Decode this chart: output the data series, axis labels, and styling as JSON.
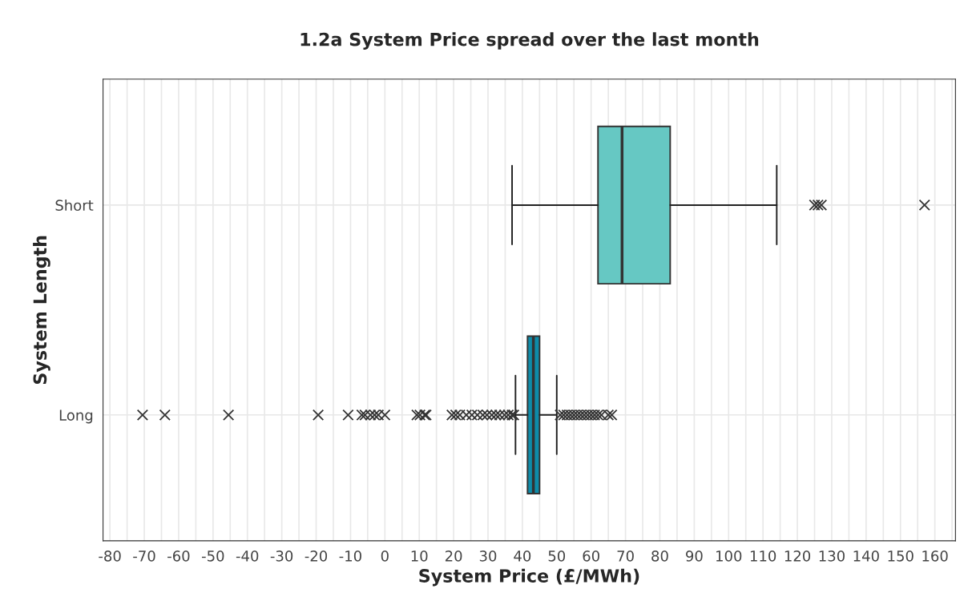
{
  "chart_data": {
    "type": "box",
    "title": "1.2a System Price spread over the last month",
    "xlabel": "System Price (£/MWh)",
    "ylabel": "System Length",
    "orientation": "horizontal",
    "categories": [
      "Short",
      "Long"
    ],
    "colors": [
      "#66c8c3",
      "#0e8ba8"
    ],
    "boxes": [
      {
        "low": 37,
        "q1": 62,
        "median": 69,
        "q3": 83,
        "high": 114,
        "outliers": [
          125,
          126,
          127,
          157
        ]
      },
      {
        "low": 38,
        "q1": 41.5,
        "median": 43.2,
        "q3": 45,
        "high": 50,
        "outliers": [
          -70.5,
          -64,
          -45.5,
          -19.4,
          -10.7,
          -6.7,
          -5.8,
          -4.2,
          -3,
          -1.9,
          0,
          9.3,
          10.2,
          11.6,
          12,
          19.5,
          20.6,
          21.8,
          23.7,
          25.3,
          26.9,
          28.5,
          29.7,
          31.1,
          32.3,
          33.4,
          34.8,
          35.9,
          37,
          37.5,
          51,
          52,
          53,
          54,
          55,
          56,
          57,
          58,
          59,
          60,
          61,
          62,
          63,
          65,
          66
        ]
      }
    ],
    "marker": "cross",
    "xlim": [
      -82,
      166
    ],
    "xticks": [
      -80,
      {
        "value": -75,
        "label": null
      },
      -70,
      {
        "value": -65,
        "label": null
      },
      -60,
      {
        "value": -55,
        "label": null
      },
      -50,
      {
        "value": -45,
        "label": null
      },
      -40,
      {
        "value": -35,
        "label": null
      },
      -30,
      {
        "value": -25,
        "label": null
      },
      -20,
      {
        "value": -15,
        "label": null
      },
      -10,
      {
        "value": -5,
        "label": null
      },
      0,
      {
        "value": 5,
        "label": null
      },
      10,
      {
        "value": 15,
        "label": null
      },
      20,
      {
        "value": 25,
        "label": null
      },
      30,
      {
        "value": 35,
        "label": null
      },
      40,
      {
        "value": 45,
        "label": null
      },
      50,
      {
        "value": 55,
        "label": null
      },
      60,
      {
        "value": 65,
        "label": null
      },
      70,
      {
        "value": 75,
        "label": null
      },
      80,
      {
        "value": 85,
        "label": null
      },
      90,
      {
        "value": 95,
        "label": null
      },
      100,
      {
        "value": 105,
        "label": null
      },
      110,
      {
        "value": 115,
        "label": null
      },
      120,
      {
        "value": 125,
        "label": null
      },
      130,
      {
        "value": 135,
        "label": null
      },
      140,
      {
        "value": 145,
        "label": null
      },
      150,
      {
        "value": 155,
        "label": null
      },
      160,
      {
        "value": 165,
        "label": null
      }
    ],
    "grid": true
  }
}
